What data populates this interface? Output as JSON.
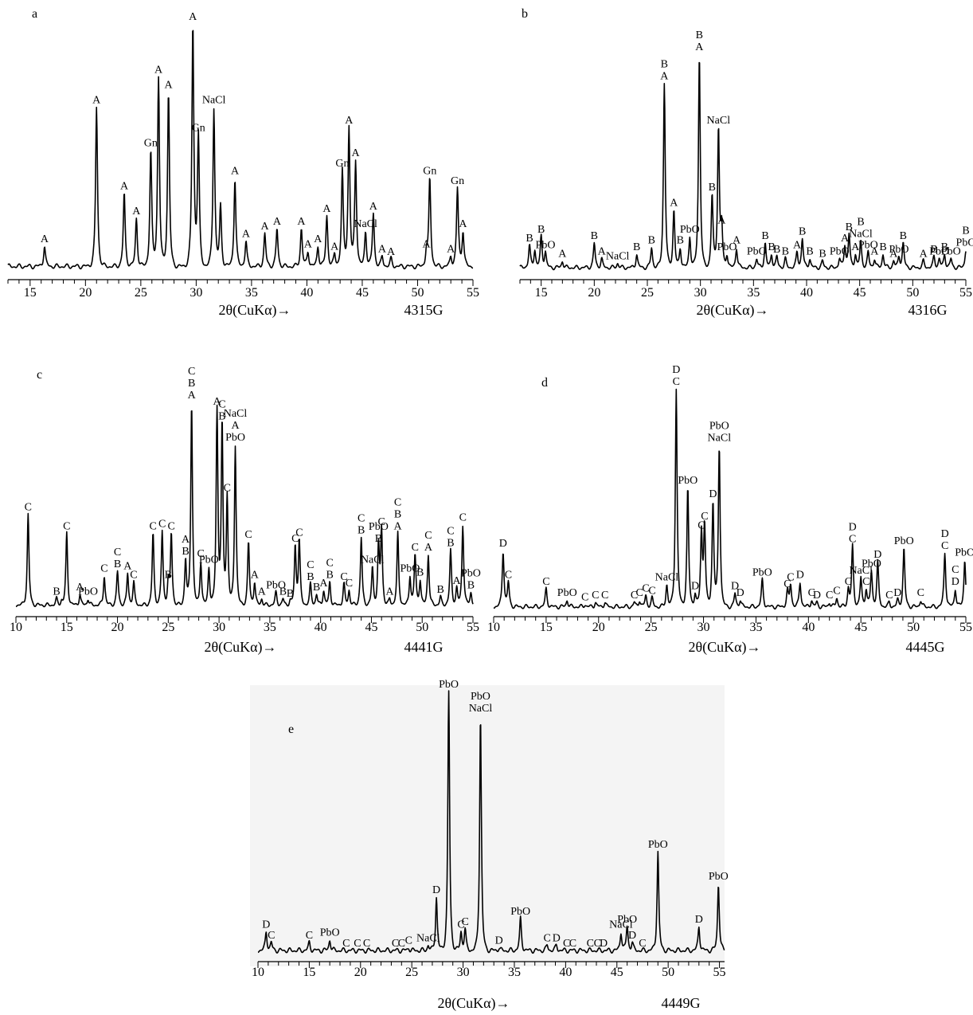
{
  "chart_data": [
    {
      "type": "line",
      "panel": "a",
      "sample_id": "4315G",
      "xlabel": "2θ(CuKα)→",
      "xlim": [
        13,
        55
      ],
      "x_ticks": [
        15,
        20,
        25,
        30,
        35,
        40,
        45,
        50,
        55
      ],
      "ylim": [
        0,
        100
      ],
      "baseline": 4,
      "peaks": [
        {
          "x": 16.3,
          "y": 12,
          "label": "A"
        },
        {
          "x": 21.0,
          "y": 67,
          "label": "A"
        },
        {
          "x": 23.5,
          "y": 33,
          "label": "A"
        },
        {
          "x": 24.6,
          "y": 23,
          "label": "A"
        },
        {
          "x": 25.9,
          "y": 50,
          "label": "Gn"
        },
        {
          "x": 26.6,
          "y": 79,
          "label": "A"
        },
        {
          "x": 27.5,
          "y": 73,
          "label": "A"
        },
        {
          "x": 29.7,
          "y": 100,
          "label": "A"
        },
        {
          "x": 30.2,
          "y": 56,
          "label": "Gn"
        },
        {
          "x": 31.6,
          "y": 67,
          "label": "NaCl"
        },
        {
          "x": 32.2,
          "y": 28,
          "label": ""
        },
        {
          "x": 33.5,
          "y": 39,
          "label": "A"
        },
        {
          "x": 34.5,
          "y": 14,
          "label": "A"
        },
        {
          "x": 36.2,
          "y": 17,
          "label": "A"
        },
        {
          "x": 37.3,
          "y": 19,
          "label": "A"
        },
        {
          "x": 39.5,
          "y": 19,
          "label": "A"
        },
        {
          "x": 40.1,
          "y": 10,
          "label": "A"
        },
        {
          "x": 41.0,
          "y": 12,
          "label": "A"
        },
        {
          "x": 41.8,
          "y": 24,
          "label": "A"
        },
        {
          "x": 42.5,
          "y": 9,
          "label": "A"
        },
        {
          "x": 43.2,
          "y": 42,
          "label": "Gn"
        },
        {
          "x": 43.8,
          "y": 59,
          "label": "A"
        },
        {
          "x": 44.4,
          "y": 46,
          "label": "A"
        },
        {
          "x": 45.3,
          "y": 18,
          "label": "NaCl"
        },
        {
          "x": 46.0,
          "y": 25,
          "label": "A"
        },
        {
          "x": 46.8,
          "y": 8,
          "label": "A"
        },
        {
          "x": 47.6,
          "y": 7,
          "label": "A"
        },
        {
          "x": 50.8,
          "y": 10,
          "label": "A"
        },
        {
          "x": 51.1,
          "y": 39,
          "label": "Gn"
        },
        {
          "x": 53.0,
          "y": 8,
          "label": "A"
        },
        {
          "x": 53.6,
          "y": 35,
          "label": "Gn"
        },
        {
          "x": 54.1,
          "y": 18,
          "label": "A"
        }
      ]
    },
    {
      "type": "line",
      "panel": "b",
      "sample_id": "4316G",
      "xlabel": "2θ(CuKα)→",
      "xlim": [
        13,
        55
      ],
      "x_ticks": [
        15,
        20,
        25,
        30,
        35,
        40,
        45,
        50,
        55
      ],
      "ylim": [
        0,
        100
      ],
      "baseline": 4,
      "peaks": [
        {
          "x": 13.9,
          "y": 14,
          "label": "B"
        },
        {
          "x": 14.4,
          "y": 12,
          "label": ""
        },
        {
          "x": 15.0,
          "y": 18,
          "label": "B"
        },
        {
          "x": 15.4,
          "y": 11,
          "label": "PbO"
        },
        {
          "x": 17.0,
          "y": 7,
          "label": "A"
        },
        {
          "x": 20.0,
          "y": 15,
          "label": "B"
        },
        {
          "x": 20.7,
          "y": 8,
          "label": "A"
        },
        {
          "x": 22.2,
          "y": 6,
          "label": "NaCl"
        },
        {
          "x": 24.0,
          "y": 10,
          "label": "B"
        },
        {
          "x": 25.4,
          "y": 13,
          "label": "B"
        },
        {
          "x": 26.6,
          "y": 87,
          "label": "B A"
        },
        {
          "x": 27.5,
          "y": 30,
          "label": "A"
        },
        {
          "x": 28.1,
          "y": 13,
          "label": "B"
        },
        {
          "x": 29.0,
          "y": 18,
          "label": "PbO"
        },
        {
          "x": 29.9,
          "y": 100,
          "label": "B A"
        },
        {
          "x": 31.1,
          "y": 37,
          "label": "B"
        },
        {
          "x": 31.7,
          "y": 67,
          "label": "NaCl"
        },
        {
          "x": 32.0,
          "y": 22,
          "label": "A"
        },
        {
          "x": 32.5,
          "y": 10,
          "label": "PbO"
        },
        {
          "x": 33.4,
          "y": 13,
          "label": "A"
        },
        {
          "x": 35.3,
          "y": 8,
          "label": "PbO"
        },
        {
          "x": 36.1,
          "y": 15,
          "label": "B"
        },
        {
          "x": 36.7,
          "y": 10,
          "label": "B"
        },
        {
          "x": 37.2,
          "y": 9,
          "label": "B"
        },
        {
          "x": 38.0,
          "y": 8,
          "label": "B"
        },
        {
          "x": 39.1,
          "y": 11,
          "label": "A"
        },
        {
          "x": 39.6,
          "y": 17,
          "label": "B"
        },
        {
          "x": 40.3,
          "y": 8,
          "label": "B"
        },
        {
          "x": 41.5,
          "y": 7,
          "label": "B"
        },
        {
          "x": 43.1,
          "y": 8,
          "label": "PbO"
        },
        {
          "x": 43.6,
          "y": 14,
          "label": "A"
        },
        {
          "x": 44.0,
          "y": 19,
          "label": "B"
        },
        {
          "x": 44.6,
          "y": 10,
          "label": "A"
        },
        {
          "x": 45.1,
          "y": 16,
          "label": "B NaCl"
        },
        {
          "x": 45.8,
          "y": 11,
          "label": "PbO"
        },
        {
          "x": 46.4,
          "y": 8,
          "label": "A"
        },
        {
          "x": 47.2,
          "y": 10,
          "label": "B"
        },
        {
          "x": 48.2,
          "y": 7,
          "label": "A"
        },
        {
          "x": 48.7,
          "y": 9,
          "label": "PbO"
        },
        {
          "x": 49.1,
          "y": 15,
          "label": "B"
        },
        {
          "x": 51.0,
          "y": 7,
          "label": "A"
        },
        {
          "x": 52.0,
          "y": 9,
          "label": "B"
        },
        {
          "x": 52.5,
          "y": 8,
          "label": "PbO"
        },
        {
          "x": 53.0,
          "y": 10,
          "label": "B"
        },
        {
          "x": 53.6,
          "y": 8,
          "label": "PbO"
        },
        {
          "x": 55.0,
          "y": 12,
          "label": "B PbO"
        }
      ]
    },
    {
      "type": "line",
      "panel": "c",
      "sample_id": "4441G",
      "xlabel": "2θ(CuKα)→",
      "xlim": [
        10,
        55
      ],
      "x_ticks": [
        10,
        15,
        20,
        25,
        30,
        35,
        40,
        45,
        50,
        55
      ],
      "ylim": [
        0,
        100
      ],
      "baseline": 4,
      "peaks": [
        {
          "x": 11.2,
          "y": 47,
          "label": "C"
        },
        {
          "x": 14.0,
          "y": 7,
          "label": "B"
        },
        {
          "x": 14.5,
          "y": 6,
          "label": ""
        },
        {
          "x": 15.0,
          "y": 38,
          "label": "C"
        },
        {
          "x": 16.3,
          "y": 9,
          "label": "A"
        },
        {
          "x": 17.1,
          "y": 7,
          "label": "PbO"
        },
        {
          "x": 18.7,
          "y": 18,
          "label": "C"
        },
        {
          "x": 20.0,
          "y": 20,
          "label": "C B"
        },
        {
          "x": 21.0,
          "y": 19,
          "label": "A"
        },
        {
          "x": 21.6,
          "y": 15,
          "label": "C"
        },
        {
          "x": 23.5,
          "y": 38,
          "label": "C"
        },
        {
          "x": 24.4,
          "y": 39,
          "label": "C"
        },
        {
          "x": 25.0,
          "y": 15,
          "label": "B"
        },
        {
          "x": 25.3,
          "y": 38,
          "label": "C"
        },
        {
          "x": 26.7,
          "y": 26,
          "label": "A B"
        },
        {
          "x": 27.3,
          "y": 100,
          "label": "C B A"
        },
        {
          "x": 28.2,
          "y": 25,
          "label": "C"
        },
        {
          "x": 29.0,
          "y": 22,
          "label": "PbO"
        },
        {
          "x": 29.8,
          "y": 97,
          "label": "A"
        },
        {
          "x": 30.3,
          "y": 90,
          "label": "C B"
        },
        {
          "x": 30.8,
          "y": 56,
          "label": "C"
        },
        {
          "x": 31.6,
          "y": 80,
          "label": "NaCl A PbO"
        },
        {
          "x": 32.9,
          "y": 34,
          "label": "C"
        },
        {
          "x": 33.5,
          "y": 15,
          "label": "A"
        },
        {
          "x": 34.2,
          "y": 7,
          "label": "A"
        },
        {
          "x": 35.6,
          "y": 10,
          "label": "PbO"
        },
        {
          "x": 36.3,
          "y": 7,
          "label": "B"
        },
        {
          "x": 37.0,
          "y": 6,
          "label": "B"
        },
        {
          "x": 37.5,
          "y": 32,
          "label": "C"
        },
        {
          "x": 37.9,
          "y": 35,
          "label": "C"
        },
        {
          "x": 39.0,
          "y": 14,
          "label": "C B"
        },
        {
          "x": 39.6,
          "y": 9,
          "label": "B"
        },
        {
          "x": 40.3,
          "y": 11,
          "label": "A"
        },
        {
          "x": 40.9,
          "y": 15,
          "label": "C B"
        },
        {
          "x": 42.3,
          "y": 14,
          "label": "C"
        },
        {
          "x": 42.8,
          "y": 11,
          "label": "C"
        },
        {
          "x": 44.0,
          "y": 36,
          "label": "C B"
        },
        {
          "x": 45.1,
          "y": 22,
          "label": "NaCl"
        },
        {
          "x": 45.7,
          "y": 32,
          "label": "PbO B"
        },
        {
          "x": 46.0,
          "y": 40,
          "label": "C"
        },
        {
          "x": 46.8,
          "y": 7,
          "label": "A"
        },
        {
          "x": 47.6,
          "y": 38,
          "label": "C B A"
        },
        {
          "x": 48.8,
          "y": 18,
          "label": "PbO"
        },
        {
          "x": 49.3,
          "y": 28,
          "label": "C"
        },
        {
          "x": 49.8,
          "y": 16,
          "label": "B"
        },
        {
          "x": 50.6,
          "y": 28,
          "label": "C A"
        },
        {
          "x": 51.8,
          "y": 8,
          "label": "B"
        },
        {
          "x": 52.8,
          "y": 30,
          "label": "C B"
        },
        {
          "x": 53.4,
          "y": 12,
          "label": "A"
        },
        {
          "x": 54.0,
          "y": 42,
          "label": "C"
        },
        {
          "x": 54.8,
          "y": 10,
          "label": "PbO B"
        }
      ]
    },
    {
      "type": "line",
      "panel": "d",
      "sample_id": "4445G",
      "xlabel": "2θ(CuKα)→",
      "xlim": [
        10,
        55
      ],
      "x_ticks": [
        10,
        15,
        20,
        25,
        30,
        35,
        40,
        45,
        50,
        55
      ],
      "ylim": [
        0,
        100
      ],
      "baseline": 3,
      "peaks": [
        {
          "x": 10.9,
          "y": 28,
          "label": "D"
        },
        {
          "x": 11.4,
          "y": 14,
          "label": "C"
        },
        {
          "x": 15.0,
          "y": 11,
          "label": "C"
        },
        {
          "x": 17.0,
          "y": 6,
          "label": "PbO"
        },
        {
          "x": 18.7,
          "y": 4,
          "label": "C"
        },
        {
          "x": 19.7,
          "y": 5,
          "label": "C"
        },
        {
          "x": 20.6,
          "y": 5,
          "label": "C"
        },
        {
          "x": 23.4,
          "y": 5,
          "label": "C"
        },
        {
          "x": 23.9,
          "y": 6,
          "label": "C"
        },
        {
          "x": 24.5,
          "y": 8,
          "label": "C"
        },
        {
          "x": 25.1,
          "y": 7,
          "label": "C"
        },
        {
          "x": 26.5,
          "y": 13,
          "label": "NaCl"
        },
        {
          "x": 27.4,
          "y": 100,
          "label": "D C"
        },
        {
          "x": 28.5,
          "y": 56,
          "label": "PbO"
        },
        {
          "x": 29.2,
          "y": 9,
          "label": "D"
        },
        {
          "x": 29.8,
          "y": 36,
          "label": "C"
        },
        {
          "x": 30.1,
          "y": 40,
          "label": "C"
        },
        {
          "x": 30.9,
          "y": 50,
          "label": "D"
        },
        {
          "x": 31.5,
          "y": 75,
          "label": "PbO NaCl"
        },
        {
          "x": 33.0,
          "y": 9,
          "label": "D"
        },
        {
          "x": 33.5,
          "y": 6,
          "label": "D"
        },
        {
          "x": 35.6,
          "y": 15,
          "label": "PbO"
        },
        {
          "x": 38.0,
          "y": 10,
          "label": "C"
        },
        {
          "x": 38.3,
          "y": 13,
          "label": "C"
        },
        {
          "x": 39.2,
          "y": 14,
          "label": "D"
        },
        {
          "x": 40.3,
          "y": 6,
          "label": "C"
        },
        {
          "x": 40.8,
          "y": 5,
          "label": "D"
        },
        {
          "x": 42.0,
          "y": 5,
          "label": "C"
        },
        {
          "x": 42.7,
          "y": 7,
          "label": "C"
        },
        {
          "x": 43.8,
          "y": 11,
          "label": "C"
        },
        {
          "x": 44.2,
          "y": 30,
          "label": "D C"
        },
        {
          "x": 45.0,
          "y": 16,
          "label": "NaCl"
        },
        {
          "x": 45.5,
          "y": 11,
          "label": "C"
        },
        {
          "x": 46.0,
          "y": 19,
          "label": "PbO"
        },
        {
          "x": 46.6,
          "y": 23,
          "label": "D"
        },
        {
          "x": 47.7,
          "y": 5,
          "label": "C"
        },
        {
          "x": 48.5,
          "y": 6,
          "label": "D"
        },
        {
          "x": 49.1,
          "y": 29,
          "label": "PbO"
        },
        {
          "x": 50.7,
          "y": 6,
          "label": "C"
        },
        {
          "x": 53.0,
          "y": 27,
          "label": "D C"
        },
        {
          "x": 54.0,
          "y": 11,
          "label": "C D"
        },
        {
          "x": 54.9,
          "y": 24,
          "label": "PbO"
        }
      ]
    },
    {
      "type": "line",
      "panel": "e",
      "sample_id": "4449G",
      "xlabel": "2θ(CuKα)→",
      "xlim": [
        10,
        55.5
      ],
      "x_ticks": [
        10,
        15,
        20,
        25,
        30,
        35,
        40,
        45,
        50,
        55
      ],
      "ylim": [
        0,
        100
      ],
      "baseline": 3,
      "peaks": [
        {
          "x": 10.8,
          "y": 10,
          "label": "D"
        },
        {
          "x": 11.3,
          "y": 6,
          "label": "C"
        },
        {
          "x": 15.0,
          "y": 6,
          "label": "C"
        },
        {
          "x": 17.0,
          "y": 7,
          "label": "PbO"
        },
        {
          "x": 18.6,
          "y": 3,
          "label": "C"
        },
        {
          "x": 19.7,
          "y": 3,
          "label": "C"
        },
        {
          "x": 20.6,
          "y": 3,
          "label": "C"
        },
        {
          "x": 23.4,
          "y": 3,
          "label": "C"
        },
        {
          "x": 24.0,
          "y": 3,
          "label": "C"
        },
        {
          "x": 24.7,
          "y": 4,
          "label": "C"
        },
        {
          "x": 26.6,
          "y": 5,
          "label": "NaCl"
        },
        {
          "x": 27.4,
          "y": 23,
          "label": "D"
        },
        {
          "x": 28.6,
          "y": 100,
          "label": "PbO"
        },
        {
          "x": 29.8,
          "y": 10,
          "label": "C"
        },
        {
          "x": 30.2,
          "y": 11,
          "label": "C"
        },
        {
          "x": 31.7,
          "y": 91,
          "label": "PbO NaCl"
        },
        {
          "x": 33.5,
          "y": 4,
          "label": "D"
        },
        {
          "x": 35.6,
          "y": 15,
          "label": "PbO"
        },
        {
          "x": 38.2,
          "y": 5,
          "label": "C"
        },
        {
          "x": 39.1,
          "y": 5,
          "label": "D"
        },
        {
          "x": 40.1,
          "y": 3,
          "label": "C"
        },
        {
          "x": 40.7,
          "y": 3,
          "label": "C"
        },
        {
          "x": 42.4,
          "y": 3,
          "label": "C"
        },
        {
          "x": 43.1,
          "y": 3,
          "label": "C"
        },
        {
          "x": 43.7,
          "y": 3,
          "label": "D"
        },
        {
          "x": 45.4,
          "y": 10,
          "label": "NaCl"
        },
        {
          "x": 46.0,
          "y": 12,
          "label": "PbO"
        },
        {
          "x": 46.5,
          "y": 6,
          "label": "D"
        },
        {
          "x": 47.5,
          "y": 3,
          "label": "C"
        },
        {
          "x": 49.0,
          "y": 40,
          "label": "PbO"
        },
        {
          "x": 53.0,
          "y": 12,
          "label": "D"
        },
        {
          "x": 54.9,
          "y": 28,
          "label": "PbO"
        }
      ]
    }
  ]
}
